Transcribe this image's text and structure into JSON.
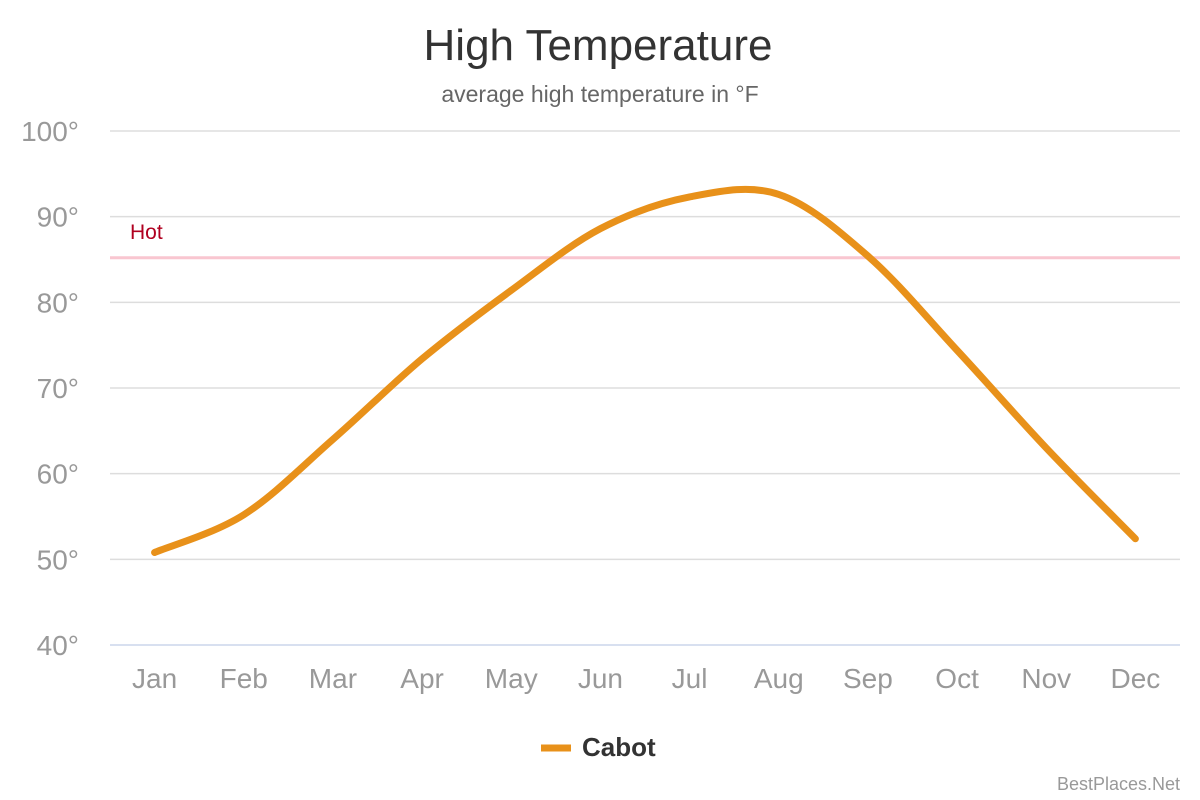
{
  "chart_data": {
    "type": "line",
    "title": "High Temperature",
    "subtitle": "average high temperature in °F",
    "xlabel": "",
    "ylabel": "",
    "categories": [
      "Jan",
      "Feb",
      "Mar",
      "Apr",
      "May",
      "Jun",
      "Jul",
      "Aug",
      "Sep",
      "Oct",
      "Nov",
      "Dec"
    ],
    "y_ticks": [
      "40°",
      "50°",
      "60°",
      "70°",
      "80°",
      "90°",
      "100°"
    ],
    "ylim": [
      40,
      100
    ],
    "grid": true,
    "legend_position": "bottom-center",
    "series": [
      {
        "name": "Cabot",
        "color": "#e8911a",
        "values": [
          50.8,
          55.2,
          64.0,
          73.4,
          81.4,
          88.6,
          92.3,
          92.6,
          85.4,
          74.4,
          63.0,
          52.4
        ]
      }
    ],
    "threshold": {
      "label": "Hot",
      "value": 85.2,
      "color": "#f9c6d0",
      "label_color": "#b00020"
    }
  },
  "credit": "BestPlaces.Net"
}
